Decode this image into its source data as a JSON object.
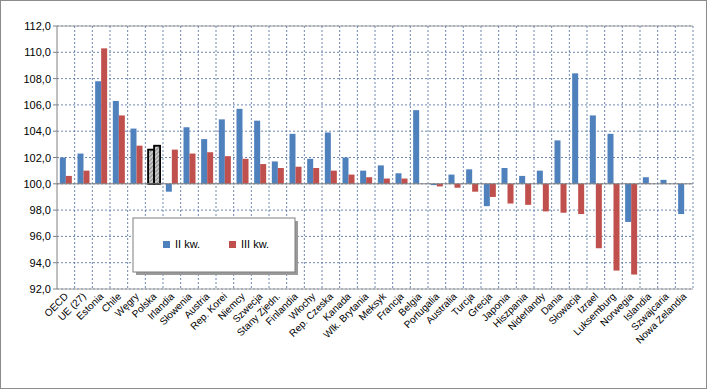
{
  "chart_data": {
    "type": "bar",
    "categories": [
      "OECD",
      "UE (27)",
      "Estonia",
      "Chile",
      "Węgry",
      "Polska",
      "Irlandia",
      "Słowenia",
      "Austria",
      "Rep. Korei",
      "Niemcy",
      "Szwecja",
      "Stany Zjedn.",
      "Finlandia",
      "Włochy",
      "Rep. Czeska",
      "Kanada",
      "Wlk. Brytania",
      "Meksyk",
      "Francja",
      "Belgia",
      "Portugalia",
      "Australia",
      "Turcja",
      "Grecja",
      "Japonia",
      "Hiszpania",
      "Niderlandy",
      "Dania",
      "Słowacja",
      "Izrael",
      "Luksemburg",
      "Norwegia",
      "Islandia",
      "Szwajcaria",
      "Nowa Zelandia"
    ],
    "series": [
      {
        "name": "II kw.",
        "color": "#4f81bd",
        "colors": [
          "#4f81bd",
          "#4f81bd",
          "#4f81bd",
          "#4f81bd",
          "#4f81bd",
          "#c8c8c8",
          "#4f81bd",
          "#4f81bd",
          "#4f81bd",
          "#4f81bd",
          "#4f81bd",
          "#4f81bd",
          "#4f81bd",
          "#4f81bd",
          "#4f81bd",
          "#4f81bd",
          "#4f81bd",
          "#4f81bd",
          "#4f81bd",
          "#4f81bd",
          "#4f81bd",
          "#4f81bd",
          "#4f81bd",
          "#4f81bd",
          "#4f81bd",
          "#4f81bd",
          "#4f81bd",
          "#4f81bd",
          "#4f81bd",
          "#4f81bd",
          "#4f81bd",
          "#4f81bd",
          "#4f81bd",
          "#4f81bd",
          "#4f81bd",
          "#4f81bd"
        ],
        "values": [
          102.0,
          102.3,
          107.8,
          106.3,
          104.2,
          102.6,
          99.4,
          104.3,
          103.4,
          104.9,
          105.7,
          104.8,
          101.7,
          103.8,
          101.9,
          103.9,
          102.0,
          101.0,
          101.4,
          100.8,
          105.6,
          99.9,
          100.7,
          101.1,
          98.3,
          101.2,
          100.6,
          101.0,
          103.3,
          108.4,
          105.2,
          103.8,
          97.1,
          100.5,
          100.3,
          97.7
        ]
      },
      {
        "name": "III kw.",
        "color": "#c0504d",
        "colors": [
          "#c0504d",
          "#c0504d",
          "#c0504d",
          "#c0504d",
          "#c0504d",
          "#c8c8c8",
          "#c0504d",
          "#c0504d",
          "#c0504d",
          "#c0504d",
          "#c0504d",
          "#c0504d",
          "#c0504d",
          "#c0504d",
          "#c0504d",
          "#c0504d",
          "#c0504d",
          "#c0504d",
          "#c0504d",
          "#c0504d",
          "#c0504d",
          "#c0504d",
          "#c0504d",
          "#c0504d",
          "#c0504d",
          "#c0504d",
          "#c0504d",
          "#c0504d",
          "#c0504d",
          "#c0504d",
          "#c0504d",
          "#c0504d",
          "#c0504d",
          "#c0504d",
          "#c0504d",
          "#c0504d"
        ],
        "values": [
          100.6,
          101.0,
          110.3,
          105.2,
          102.9,
          102.9,
          102.6,
          102.3,
          102.4,
          102.1,
          101.9,
          101.5,
          101.2,
          101.3,
          101.2,
          101.0,
          100.7,
          100.5,
          100.4,
          100.4,
          null,
          99.8,
          99.7,
          99.4,
          99.0,
          98.5,
          98.4,
          97.9,
          97.8,
          97.7,
          95.1,
          93.4,
          93.1,
          null,
          null,
          null
        ]
      }
    ],
    "baseline": 100,
    "ylim": [
      92,
      112
    ],
    "yticks": [
      {
        "value": 92,
        "label": "92,0"
      },
      {
        "value": 94,
        "label": "94,0"
      },
      {
        "value": 96,
        "label": "96,0"
      },
      {
        "value": 98,
        "label": "98,0"
      },
      {
        "value": 100,
        "label": "100,0"
      },
      {
        "value": 102,
        "label": "102,0"
      },
      {
        "value": 104,
        "label": "104,0"
      },
      {
        "value": 106,
        "label": "106,0"
      },
      {
        "value": 108,
        "label": "108,0"
      },
      {
        "value": 110,
        "label": "110,0"
      },
      {
        "value": 112,
        "label": "112,0"
      }
    ],
    "grid": true,
    "legend": "left"
  }
}
